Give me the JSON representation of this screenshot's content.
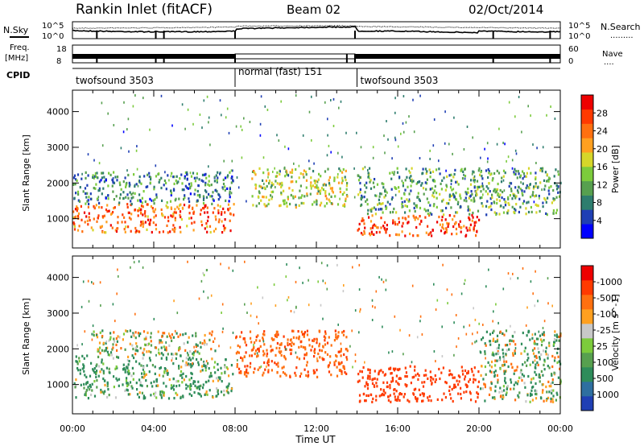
{
  "header": {
    "station": "Rankin Inlet (fitACF)",
    "beam": "Beam 02",
    "date": "02/Oct/2014"
  },
  "aux": {
    "left_top_label": "N.Sky",
    "left_top_ticks": [
      "10^5",
      "10^0"
    ],
    "right_top_label": "N.Search",
    "right_top_dots": ".........",
    "right_top_ticks": [
      "10^5",
      "10^0"
    ],
    "freq_label_1": "Freq.",
    "freq_label_2": "[MHz]",
    "freq_ticks": [
      "18",
      "8"
    ],
    "nave_label": "Nave",
    "nave_dots": "....",
    "nave_ticks": [
      "60",
      "0"
    ],
    "cpid_label": "CPID",
    "cpid_segments": [
      {
        "label": "twofsound 3503",
        "start": 0,
        "end": 8
      },
      {
        "label": "normal (fast) 151",
        "start": 8,
        "end": 14
      },
      {
        "label": "twofsound 3503",
        "start": 14,
        "end": 24
      }
    ]
  },
  "chart_data": [
    {
      "type": "heatmap",
      "title": "",
      "ylabel": "Slant Range [km]",
      "xlabel": "",
      "xlim": [
        0,
        24
      ],
      "ylim": [
        180,
        4600
      ],
      "yticks": [
        1000,
        2000,
        3000,
        4000
      ],
      "xtick_labels": [
        "00:00",
        "04:00",
        "08:00",
        "12:00",
        "16:00",
        "20:00",
        "00:00"
      ],
      "colorbar": {
        "label": "Power [dB]",
        "ticks": [
          "4",
          "8",
          "12",
          "16",
          "20",
          "24",
          "28"
        ],
        "colors": [
          "#0000ff",
          "#1f3fb4",
          "#2e7d6e",
          "#57a04f",
          "#7ccb3c",
          "#d6d62a",
          "#ffa020",
          "#ff7010",
          "#ff3a00",
          "#ee0000"
        ]
      },
      "regions": [
        {
          "t0": 0.0,
          "t1": 7.9,
          "r0": 600,
          "r1": 1400,
          "value": 24
        },
        {
          "t0": 0.0,
          "t1": 7.9,
          "r0": 1400,
          "r1": 2300,
          "value": 10
        },
        {
          "t0": 8.8,
          "t1": 13.5,
          "r0": 1300,
          "r1": 2400,
          "value": 16
        },
        {
          "t0": 14.0,
          "t1": 20.0,
          "r0": 500,
          "r1": 1100,
          "value": 26
        },
        {
          "t0": 14.0,
          "t1": 24.0,
          "r0": 1100,
          "r1": 2400,
          "value": 12
        }
      ]
    },
    {
      "type": "heatmap",
      "title": "",
      "ylabel": "Slant Range [km]",
      "xlabel": "Time UT",
      "xlim": [
        0,
        24
      ],
      "ylim": [
        180,
        4600
      ],
      "yticks": [
        1000,
        2000,
        3000,
        4000
      ],
      "xtick_labels": [
        "00:00",
        "04:00",
        "08:00",
        "12:00",
        "16:00",
        "20:00",
        "00:00"
      ],
      "colorbar": {
        "label": "Velocity [m s^-1]",
        "ticks": [
          "1000",
          "500",
          "100",
          "25",
          "-25",
          "-100",
          "-500",
          "-1000"
        ],
        "colors": [
          "#1f3fb4",
          "#2e6fa0",
          "#2e8c5a",
          "#57a04f",
          "#7ccb3c",
          "#c8c8c8",
          "#ffa020",
          "#ff7010",
          "#ff3a00",
          "#ee0000"
        ]
      },
      "regions": [
        {
          "t0": 0.0,
          "t1": 7.9,
          "r0": 600,
          "r1": 1800,
          "value": 100
        },
        {
          "t0": 1.0,
          "t1": 7.0,
          "r0": 1800,
          "r1": 2500,
          "value": 0
        },
        {
          "t0": 8.0,
          "t1": 13.5,
          "r0": 1200,
          "r1": 2500,
          "value": -250
        },
        {
          "t0": 14.0,
          "t1": 20.0,
          "r0": 500,
          "r1": 1500,
          "value": -500
        },
        {
          "t0": 20.0,
          "t1": 24.0,
          "r0": 500,
          "r1": 2500,
          "value": 50
        }
      ]
    }
  ]
}
